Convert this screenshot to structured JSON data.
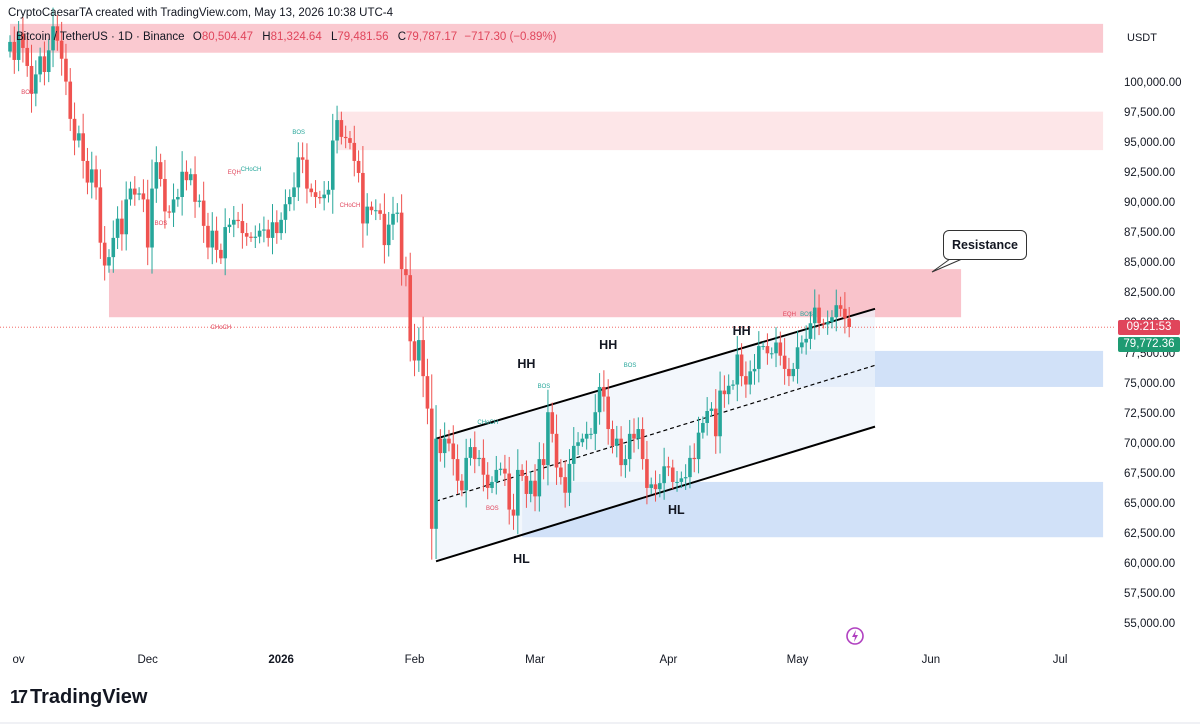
{
  "header": {
    "credit": "CryptoCaesarTA created with TradingView.com, May 13, 2026 10:38 UTC-4",
    "symbol": "Bitcoin / TetherUS · 1D · Binance",
    "open_label": "O",
    "open": "80,504.47",
    "high_label": "H",
    "high": "81,324.64",
    "low_label": "L",
    "low": "79,481.56",
    "close_label": "C",
    "close": "79,787.17",
    "change": "−717.30 (−0.89%)",
    "currency": "USDT"
  },
  "price_tag": {
    "countdown": "09:21:53",
    "price": "79,772.36"
  },
  "logo": {
    "mark": "17",
    "text": "TradingView"
  },
  "colors": {
    "up": "#26a69a",
    "down": "#ef5350",
    "supply_zone": "#f9c0c8",
    "light_supply_zone": "#fde2e4",
    "demand_zone": "#c9dcf7",
    "channel": "#000000",
    "tag_red": "#e0455b",
    "tag_green": "#1e9b72"
  },
  "icons": {
    "alert": "lightning-icon",
    "logo": "tradingview-logo-icon"
  },
  "annotations": {
    "resistance": "Resistance",
    "swing_labels": [
      {
        "text": "HH",
        "x": "2026-02-27",
        "y": 76600
      },
      {
        "text": "HH",
        "x": "2026-03-18",
        "y": 78200
      },
      {
        "text": "HH",
        "x": "2026-04-18",
        "y": 79400
      },
      {
        "text": "HL",
        "x": "2026-02-26",
        "y": 60400
      },
      {
        "text": "HL",
        "x": "2026-04-03",
        "y": 64500
      }
    ],
    "markers": [
      {
        "text": "BOS",
        "x": "2025-11-03",
        "y": 99200,
        "color": "red"
      },
      {
        "text": "BOS",
        "x": "2025-12-04",
        "y": 88300,
        "color": "red"
      },
      {
        "text": "EQH",
        "x": "2025-12-21",
        "y": 92500,
        "color": "red"
      },
      {
        "text": "CHoCH",
        "x": "2025-12-24",
        "y": 92800,
        "color": "green"
      },
      {
        "text": "BOS",
        "x": "2026-01-05",
        "y": 95800,
        "color": "green"
      },
      {
        "text": "CHoCH",
        "x": "2026-01-16",
        "y": 89800,
        "color": "red"
      },
      {
        "text": "CHoCH",
        "x": "2025-12-17",
        "y": 79600,
        "color": "red"
      },
      {
        "text": "CHoCH",
        "x": "2026-02-17",
        "y": 71700,
        "color": "green"
      },
      {
        "text": "BOS",
        "x": "2026-02-19",
        "y": 64600,
        "color": "red"
      },
      {
        "text": "BOS",
        "x": "2026-03-03",
        "y": 74700,
        "color": "green"
      },
      {
        "text": "BOS",
        "x": "2026-03-23",
        "y": 76500,
        "color": "green"
      },
      {
        "text": "EQH",
        "x": "2026-04-29",
        "y": 80700,
        "color": "red"
      },
      {
        "text": "BOS",
        "x": "2026-05-03",
        "y": 80700,
        "color": "green"
      }
    ]
  },
  "chart_data": {
    "type": "candlestick",
    "title": "Bitcoin / TetherUS · 1D · Binance",
    "x_range": [
      "2025-10-30",
      "2026-07-14"
    ],
    "ylim": [
      52500,
      105000
    ],
    "y_ticks": [
      "100,000.00",
      "97,500.00",
      "95,000.00",
      "92,500.00",
      "90,000.00",
      "87,500.00",
      "85,000.00",
      "82,500.00",
      "80,000.00",
      "77,500.00",
      "75,000.00",
      "72,500.00",
      "70,000.00",
      "67,500.00",
      "65,000.00",
      "62,500.00",
      "60,000.00",
      "57,500.00",
      "55,000.00"
    ],
    "y_tick_values": [
      100000,
      97500,
      95000,
      92500,
      90000,
      87500,
      85000,
      82500,
      80000,
      77500,
      75000,
      72500,
      70000,
      67500,
      65000,
      62500,
      60000,
      57500,
      55000
    ],
    "x_ticks": [
      {
        "label": "ov",
        "date": "2025-11-01",
        "bold": false
      },
      {
        "label": "Dec",
        "date": "2025-12-01",
        "bold": false
      },
      {
        "label": "2026",
        "date": "2026-01-01",
        "bold": true
      },
      {
        "label": "Feb",
        "date": "2026-02-01",
        "bold": false
      },
      {
        "label": "Mar",
        "date": "2026-03-01",
        "bold": false
      },
      {
        "label": "Apr",
        "date": "2026-04-01",
        "bold": false
      },
      {
        "label": "May",
        "date": "2026-05-01",
        "bold": false
      },
      {
        "label": "Jun",
        "date": "2026-06-01",
        "bold": false
      },
      {
        "label": "Jul",
        "date": "2026-07-01",
        "bold": false
      }
    ],
    "current_price": 79772.36,
    "closes": [
      {
        "x": "2025-10-30",
        "c": 103500
      },
      {
        "x": "2025-10-31",
        "c": 102000
      },
      {
        "x": "2025-11-01",
        "c": 104200
      },
      {
        "x": "2025-11-02",
        "c": 103000
      },
      {
        "x": "2025-11-03",
        "c": 101500
      },
      {
        "x": "2025-11-04",
        "c": 99200
      },
      {
        "x": "2025-11-05",
        "c": 100800
      },
      {
        "x": "2025-11-06",
        "c": 102300
      },
      {
        "x": "2025-11-07",
        "c": 101000
      },
      {
        "x": "2025-11-08",
        "c": 102800
      },
      {
        "x": "2025-11-09",
        "c": 104800
      },
      {
        "x": "2025-11-10",
        "c": 103600
      },
      {
        "x": "2025-11-11",
        "c": 102100
      },
      {
        "x": "2025-11-12",
        "c": 100200
      },
      {
        "x": "2025-11-13",
        "c": 97100
      },
      {
        "x": "2025-11-14",
        "c": 95300
      },
      {
        "x": "2025-11-15",
        "c": 95900
      },
      {
        "x": "2025-11-16",
        "c": 93600
      },
      {
        "x": "2025-11-17",
        "c": 91800
      },
      {
        "x": "2025-11-18",
        "c": 92900
      },
      {
        "x": "2025-11-19",
        "c": 91400
      },
      {
        "x": "2025-11-20",
        "c": 86800
      },
      {
        "x": "2025-11-21",
        "c": 84900
      },
      {
        "x": "2025-11-22",
        "c": 85600
      },
      {
        "x": "2025-11-23",
        "c": 87200
      },
      {
        "x": "2025-11-24",
        "c": 88800
      },
      {
        "x": "2025-11-25",
        "c": 87500
      },
      {
        "x": "2025-11-26",
        "c": 90400
      },
      {
        "x": "2025-11-27",
        "c": 91300
      },
      {
        "x": "2025-11-28",
        "c": 90800
      },
      {
        "x": "2025-11-29",
        "c": 90900
      },
      {
        "x": "2025-11-30",
        "c": 90400
      },
      {
        "x": "2025-12-01",
        "c": 86400
      },
      {
        "x": "2025-12-02",
        "c": 91300
      },
      {
        "x": "2025-12-03",
        "c": 93500
      },
      {
        "x": "2025-12-04",
        "c": 92100
      },
      {
        "x": "2025-12-05",
        "c": 89400
      },
      {
        "x": "2025-12-06",
        "c": 89300
      },
      {
        "x": "2025-12-07",
        "c": 90400
      },
      {
        "x": "2025-12-08",
        "c": 90600
      },
      {
        "x": "2025-12-09",
        "c": 92700
      },
      {
        "x": "2025-12-10",
        "c": 92000
      },
      {
        "x": "2025-12-11",
        "c": 92500
      },
      {
        "x": "2025-12-12",
        "c": 90200
      },
      {
        "x": "2025-12-13",
        "c": 90300
      },
      {
        "x": "2025-12-14",
        "c": 88200
      },
      {
        "x": "2025-12-15",
        "c": 86400
      },
      {
        "x": "2025-12-16",
        "c": 87800
      },
      {
        "x": "2025-12-17",
        "c": 86200
      },
      {
        "x": "2025-12-18",
        "c": 85500
      },
      {
        "x": "2025-12-19",
        "c": 88100
      },
      {
        "x": "2025-12-20",
        "c": 88300
      },
      {
        "x": "2025-12-21",
        "c": 88700
      },
      {
        "x": "2025-12-22",
        "c": 88600
      },
      {
        "x": "2025-12-23",
        "c": 87600
      },
      {
        "x": "2025-12-24",
        "c": 87300
      },
      {
        "x": "2025-12-25",
        "c": 87200
      },
      {
        "x": "2025-12-26",
        "c": 87300
      },
      {
        "x": "2025-12-27",
        "c": 87800
      },
      {
        "x": "2025-12-28",
        "c": 87900
      },
      {
        "x": "2025-12-29",
        "c": 87200
      },
      {
        "x": "2025-12-30",
        "c": 88500
      },
      {
        "x": "2025-12-31",
        "c": 87600
      },
      {
        "x": "2026-01-01",
        "c": 88700
      },
      {
        "x": "2026-01-02",
        "c": 90000
      },
      {
        "x": "2026-01-03",
        "c": 90600
      },
      {
        "x": "2026-01-04",
        "c": 91400
      },
      {
        "x": "2026-01-05",
        "c": 93900
      },
      {
        "x": "2026-01-06",
        "c": 93700
      },
      {
        "x": "2026-01-07",
        "c": 91300
      },
      {
        "x": "2026-01-08",
        "c": 91000
      },
      {
        "x": "2026-01-09",
        "c": 90600
      },
      {
        "x": "2026-01-10",
        "c": 90500
      },
      {
        "x": "2026-01-11",
        "c": 90800
      },
      {
        "x": "2026-01-12",
        "c": 91200
      },
      {
        "x": "2026-01-13",
        "c": 95300
      },
      {
        "x": "2026-01-14",
        "c": 97000
      },
      {
        "x": "2026-01-15",
        "c": 95600
      },
      {
        "x": "2026-01-16",
        "c": 95500
      },
      {
        "x": "2026-01-17",
        "c": 95100
      },
      {
        "x": "2026-01-18",
        "c": 93600
      },
      {
        "x": "2026-01-19",
        "c": 92600
      },
      {
        "x": "2026-01-20",
        "c": 88400
      },
      {
        "x": "2026-01-21",
        "c": 89800
      },
      {
        "x": "2026-01-22",
        "c": 89500
      },
      {
        "x": "2026-01-23",
        "c": 89500
      },
      {
        "x": "2026-01-24",
        "c": 89200
      },
      {
        "x": "2026-01-25",
        "c": 86600
      },
      {
        "x": "2026-01-26",
        "c": 88300
      },
      {
        "x": "2026-01-27",
        "c": 89200
      },
      {
        "x": "2026-01-28",
        "c": 89300
      },
      {
        "x": "2026-01-29",
        "c": 84600
      },
      {
        "x": "2026-01-30",
        "c": 84100
      },
      {
        "x": "2026-01-31",
        "c": 78600
      },
      {
        "x": "2026-02-01",
        "c": 77000
      },
      {
        "x": "2026-02-02",
        "c": 78700
      },
      {
        "x": "2026-02-03",
        "c": 75700
      },
      {
        "x": "2026-02-04",
        "c": 73000
      },
      {
        "x": "2026-02-05",
        "c": 63000
      },
      {
        "x": "2026-02-06",
        "c": 70500
      },
      {
        "x": "2026-02-07",
        "c": 69300
      },
      {
        "x": "2026-02-08",
        "c": 70500
      },
      {
        "x": "2026-02-09",
        "c": 70100
      },
      {
        "x": "2026-02-10",
        "c": 68800
      },
      {
        "x": "2026-02-11",
        "c": 67000
      },
      {
        "x": "2026-02-12",
        "c": 66200
      },
      {
        "x": "2026-02-13",
        "c": 68900
      },
      {
        "x": "2026-02-14",
        "c": 69800
      },
      {
        "x": "2026-02-15",
        "c": 68800
      },
      {
        "x": "2026-02-16",
        "c": 68900
      },
      {
        "x": "2026-02-17",
        "c": 67500
      },
      {
        "x": "2026-02-18",
        "c": 66400
      },
      {
        "x": "2026-02-19",
        "c": 66900
      },
      {
        "x": "2026-02-20",
        "c": 67900
      },
      {
        "x": "2026-02-21",
        "c": 68000
      },
      {
        "x": "2026-02-22",
        "c": 67600
      },
      {
        "x": "2026-02-23",
        "c": 64600
      },
      {
        "x": "2026-02-24",
        "c": 64100
      },
      {
        "x": "2026-02-25",
        "c": 67900
      },
      {
        "x": "2026-02-26",
        "c": 67400
      },
      {
        "x": "2026-02-27",
        "c": 65900
      },
      {
        "x": "2026-02-28",
        "c": 67000
      },
      {
        "x": "2026-03-01",
        "c": 65700
      },
      {
        "x": "2026-03-02",
        "c": 68800
      },
      {
        "x": "2026-03-03",
        "c": 68300
      },
      {
        "x": "2026-03-04",
        "c": 72700
      },
      {
        "x": "2026-03-05",
        "c": 70900
      },
      {
        "x": "2026-03-06",
        "c": 68100
      },
      {
        "x": "2026-03-07",
        "c": 67300
      },
      {
        "x": "2026-03-08",
        "c": 66000
      },
      {
        "x": "2026-03-09",
        "c": 68400
      },
      {
        "x": "2026-03-10",
        "c": 69900
      },
      {
        "x": "2026-03-11",
        "c": 70200
      },
      {
        "x": "2026-03-12",
        "c": 70500
      },
      {
        "x": "2026-03-13",
        "c": 70900
      },
      {
        "x": "2026-03-14",
        "c": 70900
      },
      {
        "x": "2026-03-15",
        "c": 72700
      },
      {
        "x": "2026-03-16",
        "c": 74800
      },
      {
        "x": "2026-03-17",
        "c": 74000
      },
      {
        "x": "2026-03-18",
        "c": 71300
      },
      {
        "x": "2026-03-19",
        "c": 69900
      },
      {
        "x": "2026-03-20",
        "c": 70500
      },
      {
        "x": "2026-03-21",
        "c": 68300
      },
      {
        "x": "2026-03-22",
        "c": 68800
      },
      {
        "x": "2026-03-23",
        "c": 70900
      },
      {
        "x": "2026-03-24",
        "c": 70500
      },
      {
        "x": "2026-03-25",
        "c": 71300
      },
      {
        "x": "2026-03-26",
        "c": 68800
      },
      {
        "x": "2026-03-27",
        "c": 66400
      },
      {
        "x": "2026-03-28",
        "c": 66700
      },
      {
        "x": "2026-03-29",
        "c": 66300
      },
      {
        "x": "2026-03-30",
        "c": 66800
      },
      {
        "x": "2026-03-31",
        "c": 68200
      },
      {
        "x": "2026-04-01",
        "c": 68100
      },
      {
        "x": "2026-04-02",
        "c": 66900
      },
      {
        "x": "2026-04-03",
        "c": 66900
      },
      {
        "x": "2026-04-04",
        "c": 67200
      },
      {
        "x": "2026-04-05",
        "c": 67300
      },
      {
        "x": "2026-04-06",
        "c": 68900
      },
      {
        "x": "2026-04-07",
        "c": 68800
      },
      {
        "x": "2026-04-08",
        "c": 71000
      },
      {
        "x": "2026-04-09",
        "c": 71800
      },
      {
        "x": "2026-04-10",
        "c": 72800
      },
      {
        "x": "2026-04-11",
        "c": 73000
      },
      {
        "x": "2026-04-12",
        "c": 70700
      },
      {
        "x": "2026-04-13",
        "c": 74500
      },
      {
        "x": "2026-04-14",
        "c": 74200
      },
      {
        "x": "2026-04-15",
        "c": 74900
      },
      {
        "x": "2026-04-16",
        "c": 75000
      },
      {
        "x": "2026-04-17",
        "c": 77500
      },
      {
        "x": "2026-04-18",
        "c": 75700
      },
      {
        "x": "2026-04-19",
        "c": 75000
      },
      {
        "x": "2026-04-20",
        "c": 76100
      },
      {
        "x": "2026-04-21",
        "c": 76300
      },
      {
        "x": "2026-04-22",
        "c": 78200
      },
      {
        "x": "2026-04-23",
        "c": 78200
      },
      {
        "x": "2026-04-24",
        "c": 77600
      },
      {
        "x": "2026-04-25",
        "c": 77600
      },
      {
        "x": "2026-04-26",
        "c": 78500
      },
      {
        "x": "2026-04-27",
        "c": 77400
      },
      {
        "x": "2026-04-28",
        "c": 76300
      },
      {
        "x": "2026-04-29",
        "c": 75700
      },
      {
        "x": "2026-04-30",
        "c": 76300
      },
      {
        "x": "2026-05-01",
        "c": 78100
      },
      {
        "x": "2026-05-02",
        "c": 78500
      },
      {
        "x": "2026-05-03",
        "c": 78800
      },
      {
        "x": "2026-05-04",
        "c": 80100
      },
      {
        "x": "2026-05-05",
        "c": 81400
      },
      {
        "x": "2026-05-06",
        "c": 80100
      },
      {
        "x": "2026-05-07",
        "c": 80000
      },
      {
        "x": "2026-05-08",
        "c": 80200
      },
      {
        "x": "2026-05-09",
        "c": 80600
      },
      {
        "x": "2026-05-10",
        "c": 81600
      },
      {
        "x": "2026-05-11",
        "c": 81300
      },
      {
        "x": "2026-05-12",
        "c": 80500
      },
      {
        "x": "2026-05-13",
        "c": 79787
      }
    ],
    "zones": [
      {
        "kind": "supply",
        "x0": "2025-10-30",
        "x1": "2026-07-11",
        "y0": 102600,
        "y1": 105000
      },
      {
        "kind": "light_supply",
        "x0": "2026-01-14",
        "x1": "2026-07-11",
        "y0": 94500,
        "y1": 97700
      },
      {
        "kind": "supply",
        "x0": "2025-11-22",
        "x1": "2026-06-08",
        "y0": 80600,
        "y1": 84600
      },
      {
        "kind": "demand",
        "x0": "2026-05-01",
        "x1": "2026-07-11",
        "y0": 74800,
        "y1": 77800
      },
      {
        "kind": "demand",
        "x0": "2026-02-26",
        "x1": "2026-07-11",
        "y0": 62300,
        "y1": 66900
      }
    ],
    "channel": {
      "upper": [
        {
          "x": "2026-02-06",
          "y": 70500
        },
        {
          "x": "2026-05-19",
          "y": 81300
        }
      ],
      "middle": [
        {
          "x": "2026-02-06",
          "y": 65300
        },
        {
          "x": "2026-05-19",
          "y": 76600
        }
      ],
      "lower": [
        {
          "x": "2026-02-06",
          "y": 60300
        },
        {
          "x": "2026-05-19",
          "y": 71500
        }
      ]
    }
  }
}
